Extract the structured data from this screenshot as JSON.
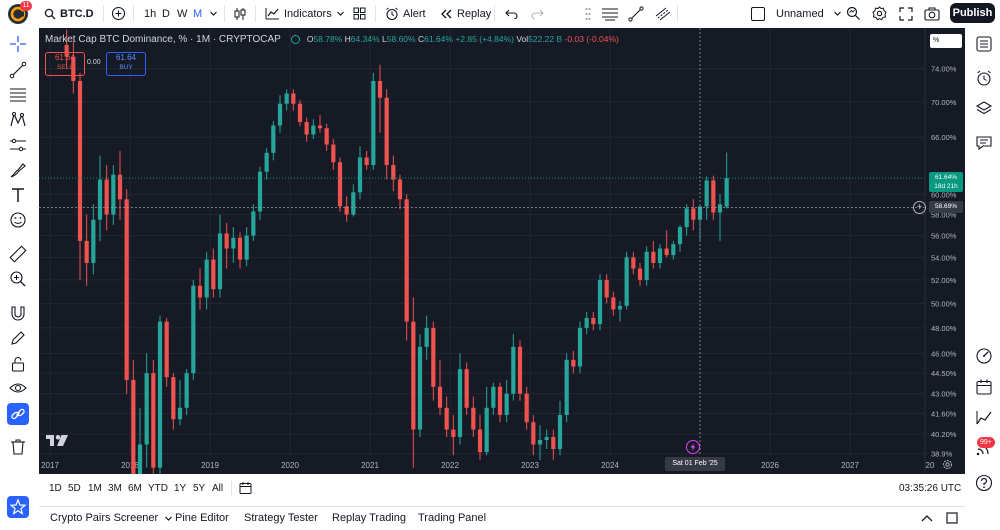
{
  "topbar": {
    "notification_count": "11",
    "symbol": "BTC.D",
    "intervals": [
      "1h",
      "D",
      "W",
      "M"
    ],
    "active_interval": "M",
    "indicators_label": "Indicators",
    "alert_label": "Alert",
    "replay_label": "Replay",
    "layout_name": "Unnamed",
    "publish_label": "Publish"
  },
  "legend": {
    "title": "Market Cap BTC Dominance, % · 1M · CRYPTOCAP",
    "o_label": "O",
    "o_value": "58.78%",
    "h_label": "H",
    "h_value": "64.34%",
    "l_label": "L",
    "l_value": "58.60%",
    "c_label": "C",
    "c_value": "61.64%",
    "change": "+2.85 (+4.84%)",
    "vol_label": "Vol",
    "vol_value": "522.22 B",
    "vol_change": "-0.03 (-0.04%)"
  },
  "trade": {
    "sell_price": "61.64",
    "sell_label": "SELL",
    "spread": "0.00",
    "buy_price": "61.64",
    "buy_label": "BUY"
  },
  "price_scale": {
    "unit_button": "%",
    "last_price": "61.64%",
    "countdown": "18d 21h",
    "crosshair_price": "58.69%"
  },
  "time_scale": {
    "crosshair_date": "Sat 01 Feb '25"
  },
  "bottom": {
    "ranges": [
      "1D",
      "5D",
      "1M",
      "3M",
      "6M",
      "YTD",
      "1Y",
      "5Y",
      "All"
    ],
    "clock": "03:35:26 UTC"
  },
  "panels": {
    "tabs": [
      "Crypto Pairs Screener",
      "Pine Editor",
      "Strategy Tester",
      "Replay Trading",
      "Trading Panel"
    ]
  },
  "rightbar": {
    "notification_badge": "99+"
  },
  "colors": {
    "up": "#26a69a",
    "down": "#ef5350",
    "background": "#161a25",
    "grid": "#232734",
    "text": "#b2b5be",
    "last_price_label": "#089981"
  },
  "chart_data": {
    "type": "candlestick",
    "title": "Market Cap BTC Dominance, % · 1M · CRYPTOCAP",
    "interval": "1M",
    "source": "CRYPTOCAP",
    "y_ticks": [
      "74.00%",
      "70.00%",
      "66.00%",
      "60.00%",
      "58.00%",
      "56.00%",
      "54.00%",
      "52.00%",
      "50.00%",
      "48.00%",
      "46.00%",
      "44.50%",
      "43.00%",
      "41.60%",
      "40.20%",
      "38.9%"
    ],
    "x_ticks": [
      "2017",
      "2018",
      "2019",
      "2020",
      "2021",
      "2022",
      "2023",
      "2024",
      "Sat 01 Feb '25",
      "2026",
      "2027",
      "20"
    ],
    "scale": "log",
    "ylim": [
      38.4,
      78
    ],
    "candles": [
      {
        "t": "2017-03",
        "o": 77.0,
        "h": 79.0,
        "l": 74.0,
        "c": 75.5
      },
      {
        "t": "2017-04",
        "o": 75.5,
        "h": 77.5,
        "l": 71.0,
        "c": 72.5
      },
      {
        "t": "2017-05",
        "o": 72.5,
        "h": 73.5,
        "l": 52.0,
        "c": 55.5
      },
      {
        "t": "2017-06",
        "o": 55.5,
        "h": 58.0,
        "l": 51.5,
        "c": 53.5
      },
      {
        "t": "2017-07",
        "o": 53.5,
        "h": 59.0,
        "l": 52.5,
        "c": 57.5
      },
      {
        "t": "2017-08",
        "o": 57.5,
        "h": 64.0,
        "l": 55.5,
        "c": 61.5
      },
      {
        "t": "2017-09",
        "o": 61.5,
        "h": 63.0,
        "l": 56.5,
        "c": 58.0
      },
      {
        "t": "2017-10",
        "o": 58.0,
        "h": 63.0,
        "l": 57.0,
        "c": 62.0
      },
      {
        "t": "2017-11",
        "o": 62.0,
        "h": 64.5,
        "l": 57.5,
        "c": 59.5
      },
      {
        "t": "2017-12",
        "o": 59.5,
        "h": 60.5,
        "l": 43.0,
        "c": 44.0
      },
      {
        "t": "2018-01",
        "o": 44.0,
        "h": 45.5,
        "l": 34.0,
        "c": 35.0
      },
      {
        "t": "2018-02",
        "o": 35.0,
        "h": 42.0,
        "l": 34.5,
        "c": 39.5
      },
      {
        "t": "2018-03",
        "o": 39.5,
        "h": 46.0,
        "l": 38.0,
        "c": 44.5
      },
      {
        "t": "2018-04",
        "o": 44.5,
        "h": 45.5,
        "l": 37.0,
        "c": 38.0
      },
      {
        "t": "2018-05",
        "o": 38.0,
        "h": 49.0,
        "l": 37.5,
        "c": 48.5
      },
      {
        "t": "2018-06",
        "o": 48.5,
        "h": 48.8,
        "l": 43.5,
        "c": 44.2
      },
      {
        "t": "2018-07",
        "o": 44.2,
        "h": 44.5,
        "l": 40.5,
        "c": 41.2
      },
      {
        "t": "2018-08",
        "o": 41.2,
        "h": 44.0,
        "l": 40.8,
        "c": 42.0
      },
      {
        "t": "2018-09",
        "o": 42.0,
        "h": 44.8,
        "l": 41.5,
        "c": 44.5
      },
      {
        "t": "2018-10",
        "o": 44.5,
        "h": 52.0,
        "l": 44.0,
        "c": 51.5
      },
      {
        "t": "2018-11",
        "o": 51.5,
        "h": 53.0,
        "l": 49.5,
        "c": 50.5
      },
      {
        "t": "2018-12",
        "o": 50.5,
        "h": 54.5,
        "l": 49.5,
        "c": 53.8
      },
      {
        "t": "2019-01",
        "o": 53.8,
        "h": 54.8,
        "l": 50.5,
        "c": 51.2
      },
      {
        "t": "2019-02",
        "o": 51.2,
        "h": 58.0,
        "l": 50.5,
        "c": 56.2
      },
      {
        "t": "2019-03",
        "o": 56.2,
        "h": 57.2,
        "l": 53.0,
        "c": 54.8
      },
      {
        "t": "2019-04",
        "o": 54.8,
        "h": 56.8,
        "l": 53.5,
        "c": 55.8
      },
      {
        "t": "2019-05",
        "o": 55.8,
        "h": 56.3,
        "l": 53.0,
        "c": 53.8
      },
      {
        "t": "2019-06",
        "o": 53.8,
        "h": 56.8,
        "l": 53.2,
        "c": 56.0
      },
      {
        "t": "2019-07",
        "o": 56.0,
        "h": 59.0,
        "l": 55.5,
        "c": 58.3
      },
      {
        "t": "2019-08",
        "o": 58.3,
        "h": 62.8,
        "l": 57.5,
        "c": 62.3
      },
      {
        "t": "2019-09",
        "o": 62.3,
        "h": 64.8,
        "l": 61.5,
        "c": 64.3
      },
      {
        "t": "2019-10",
        "o": 64.3,
        "h": 67.8,
        "l": 63.5,
        "c": 67.3
      },
      {
        "t": "2019-11",
        "o": 67.3,
        "h": 70.8,
        "l": 66.5,
        "c": 69.8
      },
      {
        "t": "2019-12",
        "o": 69.8,
        "h": 71.5,
        "l": 69.0,
        "c": 71.0
      },
      {
        "t": "2020-01",
        "o": 71.0,
        "h": 71.5,
        "l": 69.0,
        "c": 69.8
      },
      {
        "t": "2020-02",
        "o": 69.8,
        "h": 70.2,
        "l": 67.2,
        "c": 67.7
      },
      {
        "t": "2020-03",
        "o": 67.7,
        "h": 68.2,
        "l": 65.5,
        "c": 66.3
      },
      {
        "t": "2020-04",
        "o": 66.3,
        "h": 68.0,
        "l": 65.8,
        "c": 67.3
      },
      {
        "t": "2020-05",
        "o": 67.3,
        "h": 68.5,
        "l": 66.5,
        "c": 67.0
      },
      {
        "t": "2020-06",
        "o": 67.0,
        "h": 67.5,
        "l": 64.5,
        "c": 65.2
      },
      {
        "t": "2020-07",
        "o": 65.2,
        "h": 65.8,
        "l": 62.5,
        "c": 63.3
      },
      {
        "t": "2020-08",
        "o": 63.3,
        "h": 63.8,
        "l": 58.3,
        "c": 58.8
      },
      {
        "t": "2020-09",
        "o": 58.8,
        "h": 59.8,
        "l": 57.3,
        "c": 58.0
      },
      {
        "t": "2020-10",
        "o": 58.0,
        "h": 61.0,
        "l": 57.8,
        "c": 60.2
      },
      {
        "t": "2020-11",
        "o": 60.2,
        "h": 65.0,
        "l": 59.5,
        "c": 63.8
      },
      {
        "t": "2020-12",
        "o": 63.8,
        "h": 64.5,
        "l": 62.5,
        "c": 63.0
      },
      {
        "t": "2021-01",
        "o": 63.0,
        "h": 73.5,
        "l": 62.5,
        "c": 72.5
      },
      {
        "t": "2021-02",
        "o": 72.5,
        "h": 74.5,
        "l": 66.5,
        "c": 70.5
      },
      {
        "t": "2021-03",
        "o": 70.5,
        "h": 71.5,
        "l": 61.5,
        "c": 63.0
      },
      {
        "t": "2021-04",
        "o": 63.0,
        "h": 64.0,
        "l": 60.3,
        "c": 61.5
      },
      {
        "t": "2021-05",
        "o": 61.5,
        "h": 62.0,
        "l": 58.5,
        "c": 59.5
      },
      {
        "t": "2021-06",
        "o": 59.5,
        "h": 60.0,
        "l": 47.0,
        "c": 48.5
      },
      {
        "t": "2021-07",
        "o": 48.5,
        "h": 50.5,
        "l": 38.0,
        "c": 40.5
      },
      {
        "t": "2021-08",
        "o": 40.5,
        "h": 47.5,
        "l": 40.0,
        "c": 46.5
      },
      {
        "t": "2021-09",
        "o": 46.5,
        "h": 49.0,
        "l": 45.5,
        "c": 48.0
      },
      {
        "t": "2021-10",
        "o": 48.0,
        "h": 48.5,
        "l": 42.5,
        "c": 43.5
      },
      {
        "t": "2021-11",
        "o": 43.5,
        "h": 45.5,
        "l": 41.5,
        "c": 42.0
      },
      {
        "t": "2021-12",
        "o": 42.0,
        "h": 42.8,
        "l": 40.0,
        "c": 40.5
      },
      {
        "t": "2022-01",
        "o": 40.5,
        "h": 41.5,
        "l": 38.8,
        "c": 40.0
      },
      {
        "t": "2022-02",
        "o": 40.0,
        "h": 46.0,
        "l": 39.5,
        "c": 44.8
      },
      {
        "t": "2022-03",
        "o": 44.8,
        "h": 45.3,
        "l": 41.5,
        "c": 42.0
      },
      {
        "t": "2022-04",
        "o": 42.0,
        "h": 42.8,
        "l": 40.0,
        "c": 40.5
      },
      {
        "t": "2022-05",
        "o": 40.5,
        "h": 41.5,
        "l": 38.5,
        "c": 39.0
      },
      {
        "t": "2022-06",
        "o": 39.0,
        "h": 43.5,
        "l": 38.8,
        "c": 42.0
      },
      {
        "t": "2022-07",
        "o": 42.0,
        "h": 43.8,
        "l": 41.5,
        "c": 43.5
      },
      {
        "t": "2022-08",
        "o": 43.5,
        "h": 43.8,
        "l": 41.0,
        "c": 41.5
      },
      {
        "t": "2022-09",
        "o": 41.5,
        "h": 44.0,
        "l": 41.0,
        "c": 43.0
      },
      {
        "t": "2022-10",
        "o": 43.0,
        "h": 47.5,
        "l": 42.5,
        "c": 46.5
      },
      {
        "t": "2022-11",
        "o": 46.5,
        "h": 47.0,
        "l": 42.5,
        "c": 43.0
      },
      {
        "t": "2022-12",
        "o": 43.0,
        "h": 43.5,
        "l": 40.5,
        "c": 41.0
      },
      {
        "t": "2023-01",
        "o": 41.0,
        "h": 41.5,
        "l": 38.8,
        "c": 39.5
      },
      {
        "t": "2023-02",
        "o": 39.5,
        "h": 40.8,
        "l": 38.5,
        "c": 39.8
      },
      {
        "t": "2023-03",
        "o": 39.8,
        "h": 40.5,
        "l": 39.2,
        "c": 40.0
      },
      {
        "t": "2023-04",
        "o": 40.0,
        "h": 40.5,
        "l": 38.5,
        "c": 39.2
      },
      {
        "t": "2023-05",
        "o": 39.2,
        "h": 42.5,
        "l": 38.8,
        "c": 41.5
      },
      {
        "t": "2023-06",
        "o": 41.5,
        "h": 46.0,
        "l": 41.0,
        "c": 45.5
      },
      {
        "t": "2023-07",
        "o": 45.5,
        "h": 46.2,
        "l": 44.5,
        "c": 45.0
      },
      {
        "t": "2023-08",
        "o": 45.0,
        "h": 48.5,
        "l": 44.5,
        "c": 48.0
      },
      {
        "t": "2023-09",
        "o": 48.0,
        "h": 49.3,
        "l": 47.5,
        "c": 48.8
      },
      {
        "t": "2023-10",
        "o": 48.8,
        "h": 49.3,
        "l": 47.8,
        "c": 48.3
      },
      {
        "t": "2023-11",
        "o": 48.3,
        "h": 52.5,
        "l": 47.8,
        "c": 52.0
      },
      {
        "t": "2023-12",
        "o": 52.0,
        "h": 52.5,
        "l": 50.0,
        "c": 50.5
      },
      {
        "t": "2024-01",
        "o": 50.5,
        "h": 51.0,
        "l": 49.0,
        "c": 49.5
      },
      {
        "t": "2024-02",
        "o": 49.5,
        "h": 50.2,
        "l": 48.5,
        "c": 49.8
      },
      {
        "t": "2024-03",
        "o": 49.8,
        "h": 54.5,
        "l": 49.5,
        "c": 54.0
      },
      {
        "t": "2024-04",
        "o": 54.0,
        "h": 54.5,
        "l": 52.5,
        "c": 53.0
      },
      {
        "t": "2024-05",
        "o": 53.0,
        "h": 53.5,
        "l": 51.5,
        "c": 52.0
      },
      {
        "t": "2024-06",
        "o": 52.0,
        "h": 55.0,
        "l": 51.5,
        "c": 54.5
      },
      {
        "t": "2024-07",
        "o": 54.5,
        "h": 55.5,
        "l": 53.0,
        "c": 53.5
      },
      {
        "t": "2024-08",
        "o": 53.5,
        "h": 55.2,
        "l": 53.0,
        "c": 54.8
      },
      {
        "t": "2024-09",
        "o": 54.8,
        "h": 56.5,
        "l": 54.0,
        "c": 54.2
      },
      {
        "t": "2024-10",
        "o": 54.2,
        "h": 55.5,
        "l": 53.8,
        "c": 55.2
      },
      {
        "t": "2024-11",
        "o": 55.2,
        "h": 57.0,
        "l": 54.5,
        "c": 56.8
      },
      {
        "t": "2024-12",
        "o": 56.8,
        "h": 59.0,
        "l": 56.0,
        "c": 58.6
      },
      {
        "t": "2025-01",
        "o": 58.6,
        "h": 59.5,
        "l": 56.5,
        "c": 57.5
      },
      {
        "t": "2025-02",
        "o": 57.5,
        "h": 58.8,
        "l": 55.5,
        "c": 58.8
      },
      {
        "t": "2025-03",
        "o": 58.8,
        "h": 61.8,
        "l": 57.5,
        "c": 61.4
      },
      {
        "t": "2025-04",
        "o": 61.4,
        "h": 61.9,
        "l": 57.5,
        "c": 58.2
      },
      {
        "t": "2025-05",
        "o": 58.2,
        "h": 60.0,
        "l": 55.5,
        "c": 59.0
      },
      {
        "t": "2025-06",
        "o": 58.78,
        "h": 64.34,
        "l": 58.6,
        "c": 61.64
      }
    ]
  }
}
